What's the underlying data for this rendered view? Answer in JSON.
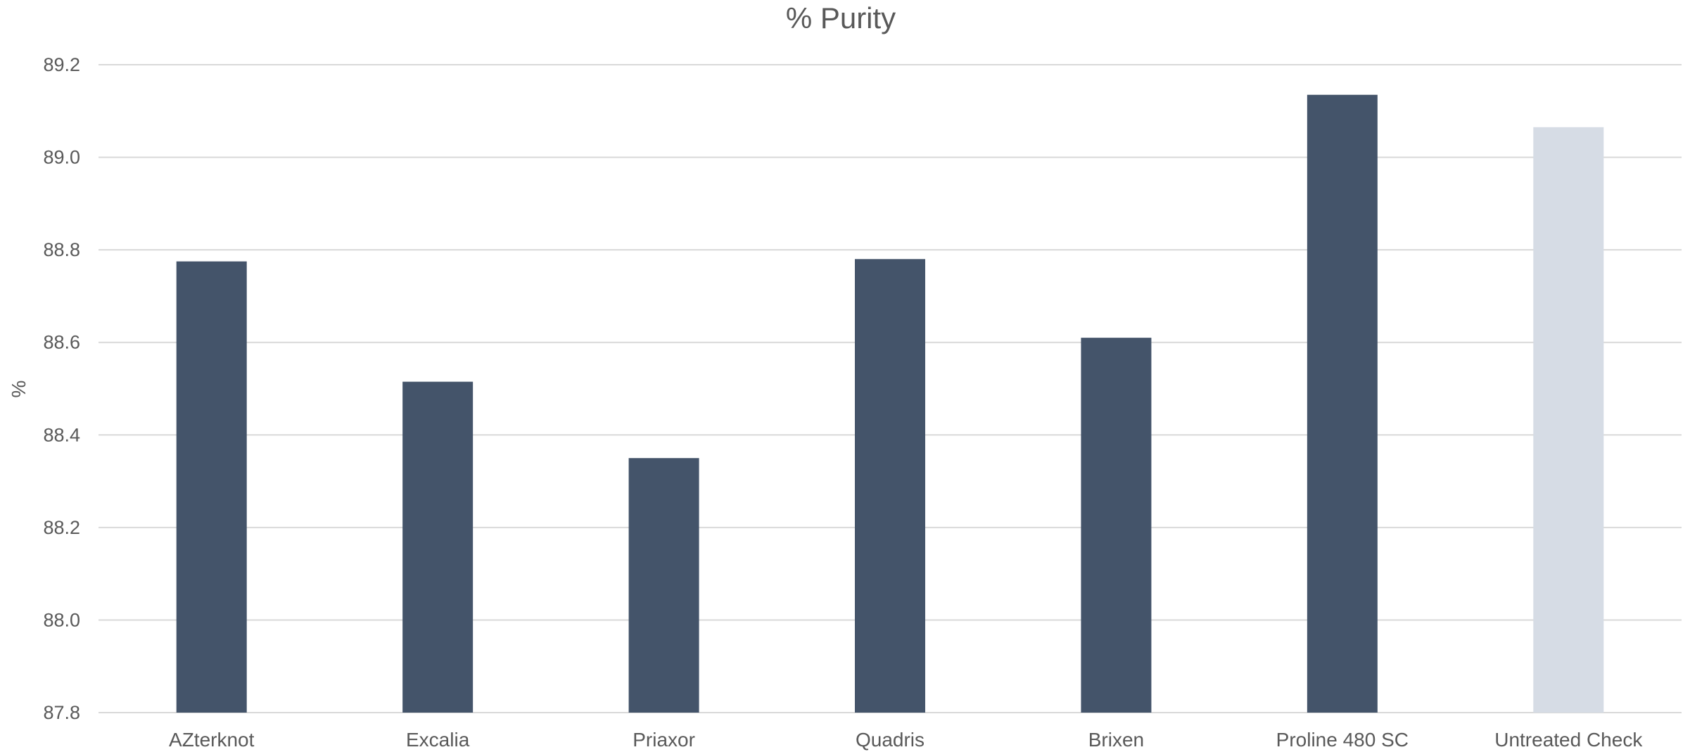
{
  "chart_data": {
    "type": "bar",
    "title": "% Purity",
    "xlabel": "",
    "ylabel": "%",
    "ylim": [
      87.8,
      89.2
    ],
    "ytick_step": 0.2,
    "ytick_decimals": 1,
    "categories": [
      "AZterknot",
      "Excalia",
      "Priaxor",
      "Quadris",
      "Brixen",
      "Proline 480 SC",
      "Untreated Check"
    ],
    "values": [
      88.775,
      88.515,
      88.35,
      88.78,
      88.61,
      89.135,
      89.065
    ],
    "bar_colors": [
      "#44546a",
      "#44546a",
      "#44546a",
      "#44546a",
      "#44546a",
      "#44546a",
      "#d6dce5"
    ],
    "grid": true,
    "legend": "none"
  }
}
